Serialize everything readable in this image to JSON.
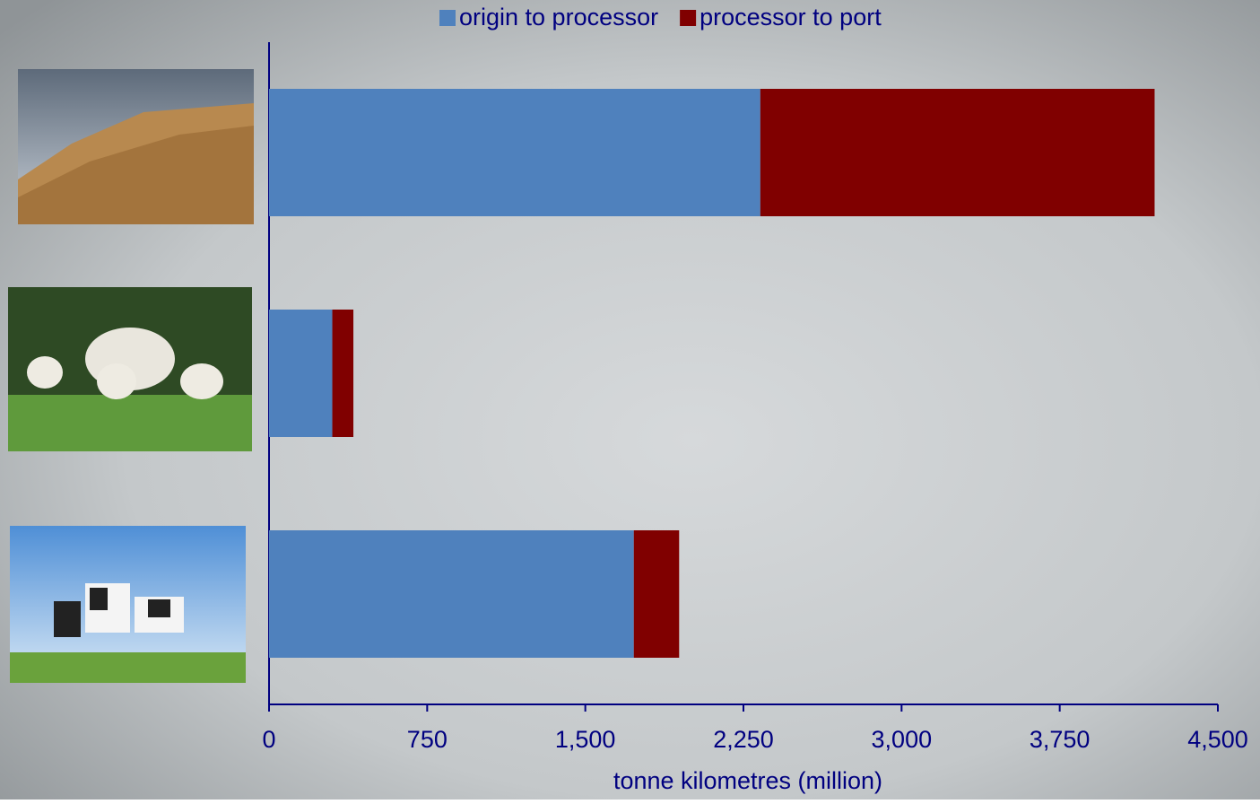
{
  "chart_data": {
    "type": "stacked-barh",
    "categories": [
      null,
      null,
      null
    ],
    "series": [
      {
        "name": "origin to processor",
        "color": "#4f81bd",
        "values": [
          2330,
          300,
          1730
        ]
      },
      {
        "name": "processor to port",
        "color": "#800000",
        "values": [
          1870,
          100,
          215
        ]
      }
    ],
    "xlabel": "tonne kilometres (million)",
    "xlim": [
      0,
      4500
    ],
    "xticks": [
      0,
      750,
      {
        "value": 1500,
        "label": "1,500"
      },
      {
        "value": 2250,
        "label": "2,250"
      },
      {
        "value": 3000,
        "label": "3,000"
      },
      {
        "value": 3750,
        "label": "3,750"
      },
      {
        "value": 4500,
        "label": "4,500"
      }
    ],
    "legend": "top"
  }
}
